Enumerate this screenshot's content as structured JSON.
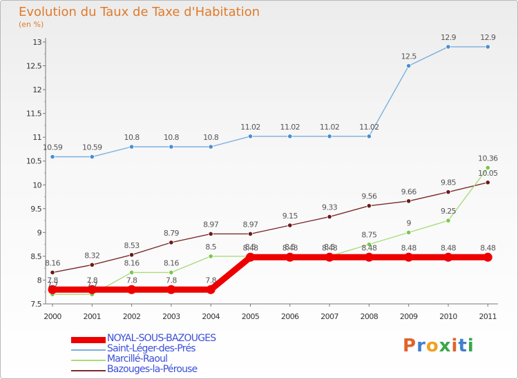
{
  "title": "Evolution du Taux de Taxe d'Habitation",
  "unit": "(en %)",
  "logo": {
    "text": "Proxiti",
    "letter_colors": [
      "#e0632a",
      "#3f7fd0",
      "#f0a020",
      "#3aa64a",
      "#e0632a",
      "#3f7fd0",
      "#3aa64a"
    ]
  },
  "chart_data": {
    "type": "line",
    "x": [
      2000,
      2001,
      2002,
      2003,
      2004,
      2005,
      2006,
      2007,
      2008,
      2009,
      2010,
      2011
    ],
    "x_tick_labels": [
      "2000",
      "2001",
      "2002",
      "2003",
      "2004",
      "2005",
      "2006",
      "2007",
      "2008",
      "2009",
      "2010",
      "2011"
    ],
    "ylim": [
      7.5,
      13
    ],
    "y_ticks": [
      7.5,
      8,
      8.5,
      9,
      9.5,
      10,
      10.5,
      11,
      11.5,
      12,
      12.5,
      13
    ],
    "y_tick_labels": [
      "7.5",
      "8",
      "8.5",
      "9",
      "9.5",
      "10",
      "10.5",
      "11",
      "11.5",
      "12",
      "12.5",
      "13"
    ],
    "grid": false,
    "legend_position": "bottom-left",
    "series": [
      {
        "name": "Saint-Léger-des-Prés",
        "color": "#7aaee0",
        "marker_color": "#4a8ed0",
        "width": 1.4,
        "values": [
          10.59,
          10.59,
          10.8,
          10.8,
          10.8,
          11.02,
          11.02,
          11.02,
          11.02,
          12.5,
          12.9,
          12.9
        ],
        "labels": [
          "10.59",
          "10.59",
          "10.8",
          "10.8",
          "10.8",
          "11.02",
          "11.02",
          "11.02",
          "11.02",
          "12.5",
          "12.9",
          "12.9"
        ]
      },
      {
        "name": "Bazouges-la-Pérouse",
        "color": "#7a2a2a",
        "marker_color": "#6a1a1a",
        "width": 1.4,
        "values": [
          8.16,
          8.32,
          8.53,
          8.79,
          8.97,
          8.97,
          9.15,
          9.33,
          9.56,
          9.66,
          9.85,
          10.05
        ],
        "labels": [
          "8.16",
          "8.32",
          "8.53",
          "8.79",
          "8.97",
          "8.97",
          "9.15",
          "9.33",
          "9.56",
          "9.66",
          "9.85",
          "10.05"
        ]
      },
      {
        "name": "Marcillé-Raoul",
        "color": "#a8dc78",
        "marker_color": "#7ac84a",
        "width": 1.4,
        "values": [
          7.7,
          7.7,
          8.16,
          8.16,
          8.5,
          8.5,
          8.5,
          8.5,
          8.75,
          9,
          9.25,
          10.36
        ],
        "labels": [
          "7.7",
          "7.7",
          "8.16",
          "8.16",
          "8.5",
          "8.5",
          "8.5",
          "8.5",
          "8.75",
          "9",
          "9.25",
          "10.36"
        ]
      },
      {
        "name": "NOYAL-SOUS-BAZOUGES",
        "color": "#ee0000",
        "marker_color": "#ee0000",
        "width": 9,
        "values": [
          7.8,
          7.8,
          7.8,
          7.8,
          7.8,
          8.48,
          8.48,
          8.48,
          8.48,
          8.48,
          8.48,
          8.48
        ],
        "labels": [
          "7.8",
          "7.8",
          "7.8",
          "7.8",
          "7.8",
          "8.48",
          "8.48",
          "8.48",
          "8.48",
          "8.48",
          "8.48",
          "8.48"
        ]
      }
    ],
    "legend_order": [
      "NOYAL-SOUS-BAZOUGES",
      "Saint-Léger-des-Prés",
      "Marcillé-Raoul",
      "Bazouges-la-Pérouse"
    ]
  }
}
